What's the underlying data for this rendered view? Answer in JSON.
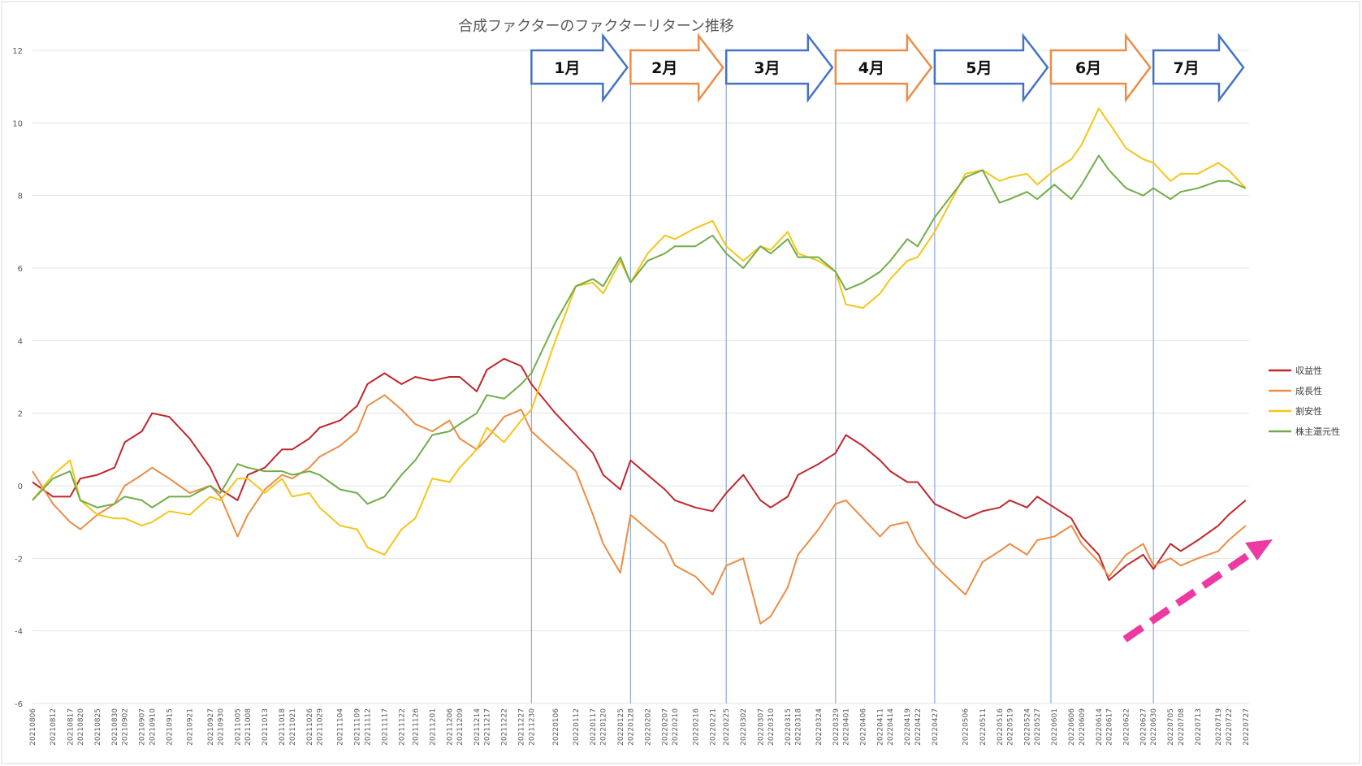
{
  "chart_data": {
    "type": "line",
    "title": "合成ファクターのファクターリターン推移",
    "xlabel": "",
    "ylabel": "",
    "ylim": [
      -6,
      12
    ],
    "yticks": [
      12,
      10,
      8,
      6,
      4,
      2,
      0,
      -2,
      -4,
      -6
    ],
    "x_start": "20210806",
    "x_end": "20220728",
    "x": [
      "20210806",
      "20210812",
      "20210817",
      "20210820",
      "20210825",
      "20210830",
      "20210902",
      "20210907",
      "20210910",
      "20210915",
      "20210921",
      "20210927",
      "20210930",
      "20211005",
      "20211008",
      "20211013",
      "20211018",
      "20211021",
      "20211026",
      "20211029",
      "20211104",
      "20211109",
      "20211112",
      "20211117",
      "20211122",
      "20211126",
      "20211201",
      "20211206",
      "20211209",
      "20211214",
      "20211217",
      "20211222",
      "20211227",
      "20211230",
      "20220106",
      "20220112",
      "20220117",
      "20220120",
      "20220125",
      "20220128",
      "20220202",
      "20220207",
      "20220210",
      "20220216",
      "20220221",
      "20220225",
      "20220302",
      "20220307",
      "20220310",
      "20220315",
      "20220318",
      "20220324",
      "20220329",
      "20220401",
      "20220406",
      "20220411",
      "20220414",
      "20220419",
      "20220422",
      "20220427",
      "20220506",
      "20220511",
      "20220516",
      "20220519",
      "20220524",
      "20220527",
      "20220601",
      "20220606",
      "20220609",
      "20220614",
      "20220617",
      "20220622",
      "20220627",
      "20220630",
      "20220705",
      "20220708",
      "20220713",
      "20220719",
      "20220722",
      "20220727"
    ],
    "series": [
      {
        "name": "収益性",
        "color": "#c0272d",
        "values": [
          0.1,
          -0.3,
          -0.3,
          0.2,
          0.3,
          0.5,
          1.2,
          1.5,
          2.0,
          1.9,
          1.3,
          0.5,
          -0.1,
          -0.4,
          0.3,
          0.5,
          1.0,
          1.0,
          1.3,
          1.6,
          1.8,
          2.2,
          2.8,
          3.1,
          2.8,
          3.0,
          2.9,
          3.0,
          3.0,
          2.6,
          3.2,
          3.5,
          3.3,
          2.8,
          2.0,
          1.4,
          0.9,
          0.3,
          -0.1,
          0.7,
          0.3,
          -0.1,
          -0.4,
          -0.6,
          -0.7,
          -0.2,
          0.3,
          -0.4,
          -0.6,
          -0.3,
          0.3,
          0.6,
          0.9,
          1.4,
          1.1,
          0.7,
          0.4,
          0.1,
          0.1,
          -0.5,
          -0.9,
          -0.7,
          -0.6,
          -0.4,
          -0.6,
          -0.3,
          -0.6,
          -0.9,
          -1.4,
          -1.9,
          -2.6,
          -2.2,
          -1.9,
          -2.3,
          -1.6,
          -1.8,
          -1.5,
          -1.1,
          -0.8,
          -0.4
        ]
      },
      {
        "name": "成長性",
        "color": "#ed8c45",
        "values": [
          0.4,
          -0.5,
          -1.0,
          -1.2,
          -0.8,
          -0.5,
          0.0,
          0.3,
          0.5,
          0.2,
          -0.2,
          0.0,
          -0.3,
          -1.4,
          -0.8,
          -0.1,
          0.3,
          0.2,
          0.5,
          0.8,
          1.1,
          1.5,
          2.2,
          2.5,
          2.1,
          1.7,
          1.5,
          1.8,
          1.3,
          1.0,
          1.3,
          1.9,
          2.1,
          1.5,
          0.9,
          0.4,
          -0.8,
          -1.6,
          -2.4,
          -0.8,
          -1.2,
          -1.6,
          -2.2,
          -2.5,
          -3.0,
          -2.2,
          -2.0,
          -3.8,
          -3.6,
          -2.8,
          -1.9,
          -1.2,
          -0.5,
          -0.4,
          -0.9,
          -1.4,
          -1.1,
          -1.0,
          -1.6,
          -2.2,
          -3.0,
          -2.1,
          -1.8,
          -1.6,
          -1.9,
          -1.5,
          -1.4,
          -1.1,
          -1.6,
          -2.1,
          -2.5,
          -1.9,
          -1.6,
          -2.2,
          -2.0,
          -2.2,
          -2.0,
          -1.8,
          -1.5,
          -1.1
        ]
      },
      {
        "name": "割安性",
        "color": "#f5c518",
        "values": [
          -0.4,
          0.3,
          0.7,
          -0.4,
          -0.8,
          -0.9,
          -0.9,
          -1.1,
          -1.0,
          -0.7,
          -0.8,
          -0.3,
          -0.4,
          0.2,
          0.2,
          -0.2,
          0.2,
          -0.3,
          -0.2,
          -0.6,
          -1.1,
          -1.2,
          -1.7,
          -1.9,
          -1.2,
          -0.9,
          0.2,
          0.1,
          0.5,
          1.0,
          1.6,
          1.2,
          1.8,
          2.1,
          4.0,
          5.5,
          5.6,
          5.3,
          6.2,
          5.6,
          6.4,
          6.9,
          6.8,
          7.1,
          7.3,
          6.6,
          6.2,
          6.6,
          6.5,
          7.0,
          6.4,
          6.2,
          5.9,
          5.0,
          4.9,
          5.3,
          5.7,
          6.2,
          6.3,
          7.0,
          8.6,
          8.7,
          8.4,
          8.5,
          8.6,
          8.3,
          8.7,
          9.0,
          9.4,
          10.4,
          10.0,
          9.3,
          9.0,
          8.9,
          8.4,
          8.6,
          8.6,
          8.9,
          8.7,
          8.2
        ]
      },
      {
        "name": "株主還元性",
        "color": "#70ad47",
        "values": [
          -0.4,
          0.2,
          0.4,
          -0.4,
          -0.6,
          -0.5,
          -0.3,
          -0.4,
          -0.6,
          -0.3,
          -0.3,
          0.0,
          -0.2,
          0.6,
          0.5,
          0.4,
          0.4,
          0.3,
          0.4,
          0.3,
          -0.1,
          -0.2,
          -0.5,
          -0.3,
          0.3,
          0.7,
          1.4,
          1.5,
          1.7,
          2.0,
          2.5,
          2.4,
          2.8,
          3.1,
          4.5,
          5.5,
          5.7,
          5.5,
          6.3,
          5.6,
          6.2,
          6.4,
          6.6,
          6.6,
          6.9,
          6.4,
          6.0,
          6.6,
          6.4,
          6.8,
          6.3,
          6.3,
          5.9,
          5.4,
          5.6,
          5.9,
          6.2,
          6.8,
          6.6,
          7.4,
          8.5,
          8.7,
          7.8,
          7.9,
          8.1,
          7.9,
          8.3,
          7.9,
          8.3,
          9.1,
          8.7,
          8.2,
          8.0,
          8.2,
          7.9,
          8.1,
          8.2,
          8.4,
          8.4,
          8.2
        ]
      }
    ],
    "legend_position": "right",
    "grid": true,
    "month_labels": [
      "1月",
      "2月",
      "3月",
      "4月",
      "5月",
      "6月",
      "7月"
    ],
    "month_arrow_colors": [
      "#4472c4",
      "#ed8c45",
      "#4472c4",
      "#ed8c45",
      "#4472c4",
      "#ed8c45",
      "#4472c4"
    ],
    "month_boundaries": [
      "20211230",
      "20220128",
      "20220225",
      "20220329",
      "20220427",
      "20220531",
      "20220630"
    ],
    "trend_arrow_color": "#ec3aa2"
  }
}
